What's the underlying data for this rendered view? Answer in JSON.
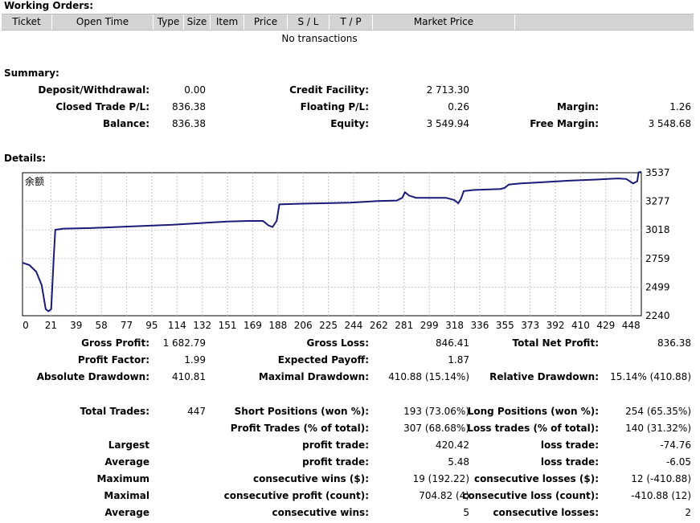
{
  "working_orders": {
    "title": "Working Orders:",
    "columns": [
      "Ticket",
      "Open Time",
      "Type",
      "Size",
      "Item",
      "Price",
      "S / L",
      "T / P",
      "Market Price",
      ""
    ],
    "empty_text": "No transactions"
  },
  "summary": {
    "title": "Summary:",
    "deposit_label": "Deposit/Withdrawal:",
    "deposit_value": "0.00",
    "credit_label": "Credit Facility:",
    "credit_value": "2 713.30",
    "closed_pl_label": "Closed Trade P/L:",
    "closed_pl_value": "836.38",
    "floating_pl_label": "Floating P/L:",
    "floating_pl_value": "0.26",
    "margin_label": "Margin:",
    "margin_value": "1.26",
    "balance_label": "Balance:",
    "balance_value": "836.38",
    "equity_label": "Equity:",
    "equity_value": "3 549.94",
    "free_margin_label": "Free Margin:",
    "free_margin_value": "3 548.68"
  },
  "details": {
    "title": "Details:"
  },
  "chart_data": {
    "type": "line",
    "legend_label": "余额",
    "x_ticks": [
      "0",
      "21",
      "39",
      "58",
      "77",
      "95",
      "114",
      "132",
      "151",
      "169",
      "188",
      "206",
      "225",
      "244",
      "262",
      "281",
      "299",
      "318",
      "336",
      "355",
      "373",
      "392",
      "410",
      "429",
      "448"
    ],
    "y_ticks": [
      "3537",
      "3277",
      "3018",
      "2759",
      "2499",
      "2240"
    ],
    "ylim": [
      2240,
      3537
    ],
    "xlim": [
      0,
      453
    ],
    "grid": true,
    "line_color": "#1a1a7a",
    "points": [
      [
        0,
        2720
      ],
      [
        5,
        2700
      ],
      [
        10,
        2640
      ],
      [
        14,
        2520
      ],
      [
        17,
        2300
      ],
      [
        19,
        2280
      ],
      [
        21,
        2300
      ],
      [
        23,
        2800
      ],
      [
        24,
        3020
      ],
      [
        30,
        3030
      ],
      [
        50,
        3035
      ],
      [
        70,
        3045
      ],
      [
        90,
        3055
      ],
      [
        110,
        3065
      ],
      [
        130,
        3080
      ],
      [
        150,
        3095
      ],
      [
        165,
        3100
      ],
      [
        176,
        3100
      ],
      [
        180,
        3060
      ],
      [
        183,
        3045
      ],
      [
        186,
        3100
      ],
      [
        188,
        3250
      ],
      [
        200,
        3255
      ],
      [
        220,
        3260
      ],
      [
        240,
        3265
      ],
      [
        260,
        3280
      ],
      [
        274,
        3285
      ],
      [
        278,
        3310
      ],
      [
        280,
        3360
      ],
      [
        283,
        3330
      ],
      [
        288,
        3310
      ],
      [
        300,
        3310
      ],
      [
        310,
        3310
      ],
      [
        316,
        3290
      ],
      [
        319,
        3260
      ],
      [
        321,
        3300
      ],
      [
        323,
        3370
      ],
      [
        330,
        3380
      ],
      [
        340,
        3385
      ],
      [
        350,
        3390
      ],
      [
        353,
        3400
      ],
      [
        356,
        3430
      ],
      [
        365,
        3440
      ],
      [
        380,
        3450
      ],
      [
        400,
        3465
      ],
      [
        420,
        3475
      ],
      [
        436,
        3485
      ],
      [
        442,
        3480
      ],
      [
        447,
        3440
      ],
      [
        450,
        3460
      ],
      [
        451,
        3540
      ],
      [
        453,
        3545
      ]
    ]
  },
  "stats": {
    "gross_profit_label": "Gross Profit:",
    "gross_profit_value": "1 682.79",
    "gross_loss_label": "Gross Loss:",
    "gross_loss_value": "846.41",
    "total_net_label": "Total Net Profit:",
    "total_net_value": "836.38",
    "profit_factor_label": "Profit Factor:",
    "profit_factor_value": "1.99",
    "expected_payoff_label": "Expected Payoff:",
    "expected_payoff_value": "1.87",
    "abs_dd_label": "Absolute Drawdown:",
    "abs_dd_value": "410.81",
    "max_dd_label": "Maximal Drawdown:",
    "max_dd_value": "410.88 (15.14%)",
    "rel_dd_label": "Relative Drawdown:",
    "rel_dd_value": "15.14% (410.88)",
    "total_trades_label": "Total Trades:",
    "total_trades_value": "447",
    "short_label": "Short Positions (won %):",
    "short_value": "193 (73.06%)",
    "long_label": "Long Positions (won %):",
    "long_value": "254 (65.35%)",
    "profit_trades_label": "Profit Trades (% of total):",
    "profit_trades_value": "307 (68.68%)",
    "loss_trades_label": "Loss trades (% of total):",
    "loss_trades_value": "140 (31.32%)",
    "largest_label": "Largest",
    "largest_profit_label": "profit trade:",
    "largest_profit_value": "420.42",
    "largest_loss_label": "loss trade:",
    "largest_loss_value": "-74.76",
    "average_label": "Average",
    "average_profit_label": "profit trade:",
    "average_profit_value": "5.48",
    "average_loss_label": "loss trade:",
    "average_loss_value": "-6.05",
    "maximum_label": "Maximum",
    "max_cons_wins_label": "consecutive wins ($):",
    "max_cons_wins_value": "19 (192.22)",
    "max_cons_losses_label": "consecutive losses ($):",
    "max_cons_losses_value": "12 (-410.88)",
    "maximal_label": "Maximal",
    "maximal_profit_label": "consecutive profit (count):",
    "maximal_profit_value": "704.82 (4)",
    "maximal_loss_label": "consecutive loss (count):",
    "maximal_loss_value": "-410.88 (12)",
    "average2_label": "Average",
    "avg_cons_wins_label": "consecutive wins:",
    "avg_cons_wins_value": "5",
    "avg_cons_losses_label": "consecutive losses:",
    "avg_cons_losses_value": "2"
  }
}
